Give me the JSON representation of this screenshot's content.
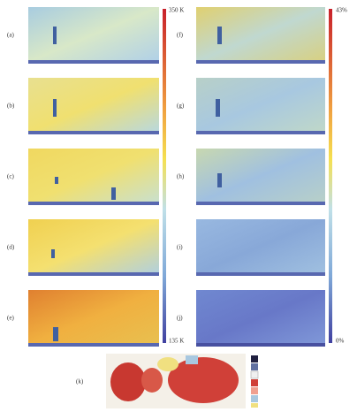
{
  "panels": [
    {
      "label": "(a)"
    },
    {
      "label": "(b)"
    },
    {
      "label": "(c)"
    },
    {
      "label": "(d)"
    },
    {
      "label": "(e)"
    },
    {
      "label": "(f)"
    },
    {
      "label": "(g)"
    },
    {
      "label": "(h)"
    },
    {
      "label": "(i)"
    },
    {
      "label": "(j)"
    },
    {
      "label": "(k)"
    }
  ],
  "colorbars": [
    {
      "max_label": "350 K",
      "min_label": "135 K"
    },
    {
      "max_label": "43%",
      "min_label": "0%"
    }
  ]
}
